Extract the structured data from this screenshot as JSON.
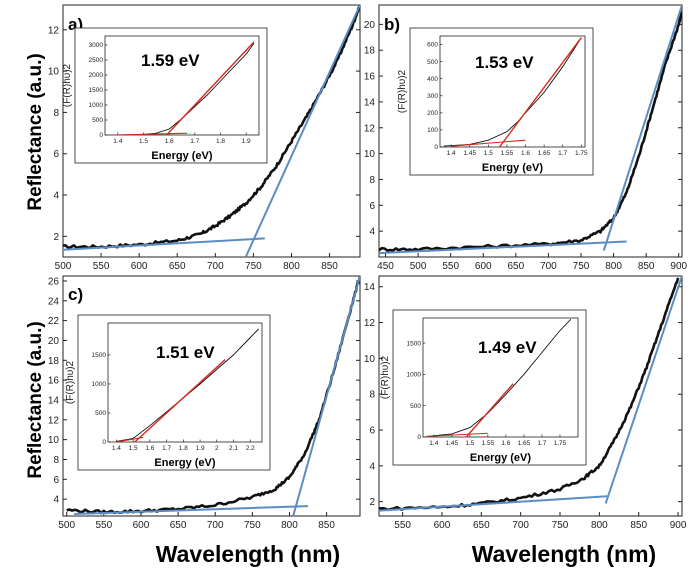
{
  "figure": {
    "ylabel_top": "Reflectance (a.u.)",
    "ylabel_bottom": "Reflectance (a.u.)",
    "xlabel_left": "Wavelength (nm)",
    "xlabel_right": "Wavelength (nm)",
    "inset_xlabel": "Energy (eV)",
    "inset_ylabel": "(F(R)hυ)2",
    "colors": {
      "data": "#111111",
      "fit": "#5b8dc4",
      "tauc_fit": "#d42a1e"
    }
  },
  "chart_data": [
    {
      "type": "line",
      "panel_label": "a)",
      "xlim": [
        500,
        890
      ],
      "ylim": [
        1,
        13.2
      ],
      "xticks": [
        500,
        550,
        600,
        650,
        700,
        750,
        800,
        850
      ],
      "yticks": [
        2,
        4,
        6,
        8,
        10,
        12
      ],
      "spectrum": {
        "x": [
          500,
          550,
          600,
          650,
          680,
          700,
          720,
          740,
          760,
          780,
          800,
          820,
          840,
          860,
          880,
          890
        ],
        "y": [
          1.5,
          1.5,
          1.6,
          1.8,
          2.1,
          2.5,
          3.0,
          3.6,
          4.4,
          5.4,
          6.6,
          7.8,
          9.1,
          10.5,
          12.2,
          13.2
        ]
      },
      "baseline_fit": {
        "x": [
          500,
          765
        ],
        "y": [
          1.35,
          1.9
        ]
      },
      "edge_fit": {
        "x": [
          740,
          890
        ],
        "y": [
          1.0,
          13.2
        ]
      },
      "inset": {
        "band_gap": "1.59 eV",
        "xlim": [
          1.35,
          1.95
        ],
        "ylim": [
          0,
          3300
        ],
        "xticks": [
          1.4,
          1.5,
          1.6,
          1.7,
          1.8,
          1.9
        ],
        "yticks": [
          0,
          500,
          1000,
          1500,
          2000,
          2500,
          3000
        ],
        "tauc": {
          "x": [
            1.4,
            1.5,
            1.55,
            1.6,
            1.65,
            1.7,
            1.75,
            1.8,
            1.85,
            1.9,
            1.93
          ],
          "y": [
            0,
            20,
            60,
            200,
            550,
            950,
            1350,
            1800,
            2250,
            2700,
            3050
          ]
        },
        "linear_fit": {
          "x": [
            1.59,
            1.93
          ],
          "y": [
            0,
            3100
          ]
        },
        "base_fit": {
          "x": [
            1.4,
            1.67
          ],
          "y": [
            0,
            60
          ]
        }
      }
    },
    {
      "type": "line",
      "panel_label": "b)",
      "xlim": [
        440,
        905
      ],
      "ylim": [
        2,
        21.5
      ],
      "xticks": [
        450,
        500,
        550,
        600,
        650,
        700,
        750,
        800,
        850,
        900
      ],
      "yticks": [
        4,
        6,
        8,
        10,
        12,
        14,
        16,
        18,
        20
      ],
      "spectrum": {
        "x": [
          440,
          500,
          600,
          700,
          750,
          780,
          800,
          820,
          840,
          860,
          880,
          900,
          905
        ],
        "y": [
          2.6,
          2.6,
          2.8,
          3.0,
          3.3,
          4.0,
          5.0,
          7.0,
          10.0,
          13.5,
          17.0,
          20.0,
          21.0
        ]
      },
      "baseline_fit": {
        "x": [
          440,
          820
        ],
        "y": [
          2.3,
          3.2
        ]
      },
      "edge_fit": {
        "x": [
          785,
          905
        ],
        "y": [
          2.5,
          21.5
        ]
      },
      "inset": {
        "band_gap": "1.53 eV",
        "xlim": [
          1.37,
          1.76
        ],
        "ylim": [
          0,
          650
        ],
        "xticks": [
          1.4,
          1.45,
          1.5,
          1.55,
          1.6,
          1.65,
          1.7,
          1.75
        ],
        "yticks": [
          0,
          100,
          200,
          300,
          400,
          500,
          600
        ],
        "tauc": {
          "x": [
            1.38,
            1.45,
            1.5,
            1.55,
            1.58,
            1.6,
            1.65,
            1.7,
            1.75
          ],
          "y": [
            5,
            15,
            40,
            90,
            150,
            200,
            320,
            470,
            640
          ]
        },
        "linear_fit": {
          "x": [
            1.53,
            1.75
          ],
          "y": [
            0,
            640
          ]
        },
        "base_fit": {
          "x": [
            1.4,
            1.6
          ],
          "y": [
            5,
            40
          ]
        }
      }
    },
    {
      "type": "line",
      "panel_label": "c)",
      "xlim": [
        495,
        895
      ],
      "ylim": [
        2.3,
        26.5
      ],
      "xticks": [
        500,
        550,
        600,
        650,
        700,
        750,
        800,
        850
      ],
      "yticks": [
        4,
        6,
        8,
        10,
        12,
        14,
        16,
        18,
        20,
        22,
        24,
        26
      ],
      "spectrum": {
        "x": [
          500,
          550,
          600,
          650,
          700,
          750,
          780,
          800,
          820,
          840,
          860,
          880,
          895
        ],
        "y": [
          2.9,
          2.7,
          2.8,
          3.0,
          3.4,
          4.2,
          5.0,
          6.2,
          8.5,
          12.0,
          17.0,
          22.5,
          26.5
        ]
      },
      "baseline_fit": {
        "x": [
          510,
          825
        ],
        "y": [
          2.5,
          3.3
        ]
      },
      "edge_fit": {
        "x": [
          805,
          895
        ],
        "y": [
          2.3,
          26.5
        ]
      },
      "inset": {
        "band_gap": "1.51 eV",
        "xlim": [
          1.35,
          2.27
        ],
        "ylim": [
          0,
          2050
        ],
        "xticks": [
          1.4,
          1.5,
          1.6,
          1.7,
          1.8,
          1.9,
          2.0,
          2.1,
          2.2
        ],
        "yticks": [
          0,
          500,
          1000,
          1500
        ],
        "tauc": {
          "x": [
            1.4,
            1.5,
            1.6,
            1.7,
            1.8,
            1.9,
            2.0,
            2.1,
            2.2,
            2.25
          ],
          "y": [
            10,
            60,
            280,
            520,
            760,
            1000,
            1250,
            1500,
            1800,
            1950
          ]
        },
        "linear_fit": {
          "x": [
            1.51,
            2.05
          ],
          "y": [
            0,
            1420
          ]
        },
        "base_fit": {
          "x": [
            1.4,
            1.56
          ],
          "y": [
            0,
            80
          ]
        }
      }
    },
    {
      "type": "line",
      "panel_label": "",
      "xlim": [
        520,
        905
      ],
      "ylim": [
        1.2,
        14.6
      ],
      "xticks": [
        550,
        600,
        650,
        700,
        750,
        800,
        850,
        900
      ],
      "yticks": [
        2,
        4,
        6,
        8,
        10,
        12,
        14
      ],
      "spectrum": {
        "x": [
          520,
          600,
          650,
          700,
          750,
          780,
          800,
          820,
          840,
          860,
          880,
          900
        ],
        "y": [
          1.6,
          1.7,
          1.9,
          2.2,
          2.7,
          3.3,
          4.0,
          5.5,
          7.3,
          9.5,
          12.0,
          14.5
        ]
      },
      "baseline_fit": {
        "x": [
          520,
          810
        ],
        "y": [
          1.5,
          2.3
        ]
      },
      "edge_fit": {
        "x": [
          808,
          905
        ],
        "y": [
          1.9,
          14.6
        ]
      },
      "inset": {
        "band_gap": "1.49 eV",
        "xlim": [
          1.37,
          1.8
        ],
        "ylim": [
          0,
          1900
        ],
        "xticks": [
          1.4,
          1.45,
          1.5,
          1.55,
          1.6,
          1.65,
          1.7,
          1.75
        ],
        "yticks": [
          0,
          500,
          1000,
          1500
        ],
        "tauc": {
          "x": [
            1.38,
            1.45,
            1.5,
            1.55,
            1.6,
            1.65,
            1.7,
            1.75,
            1.78
          ],
          "y": [
            10,
            50,
            150,
            380,
            680,
            1000,
            1350,
            1700,
            1880
          ]
        },
        "linear_fit": {
          "x": [
            1.49,
            1.62
          ],
          "y": [
            0,
            850
          ]
        },
        "base_fit": {
          "x": [
            1.38,
            1.55
          ],
          "y": [
            10,
            60
          ]
        }
      }
    }
  ]
}
